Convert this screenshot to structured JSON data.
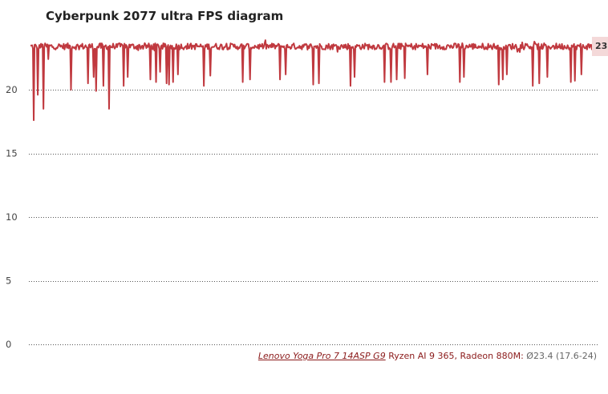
{
  "chart_data": {
    "type": "line",
    "title": "Cyberpunk 2077 ultra FPS diagram",
    "ylim": [
      0,
      24.5
    ],
    "yticks": [
      0,
      5,
      10,
      15,
      20
    ],
    "grid": true,
    "legend_position": "bottom-right",
    "series": [
      {
        "name": "Lenovo Yoga Pro 7 14ASP G9",
        "spec": "Ryzen AI 9 365, Radeon 880M:",
        "stats": "Ø23.4 (17.6-24)",
        "end_value": "23.4",
        "color": "#c0393f",
        "avg": 23.4,
        "min": 17.6,
        "max": 24,
        "sample_count": 700,
        "dips": [
          {
            "x": 4,
            "y": 17.6
          },
          {
            "x": 9,
            "y": 19.6
          },
          {
            "x": 16,
            "y": 18.5
          },
          {
            "x": 22,
            "y": 22.4
          },
          {
            "x": 50,
            "y": 20.0
          },
          {
            "x": 71,
            "y": 20.5
          },
          {
            "x": 78,
            "y": 21.0
          },
          {
            "x": 81,
            "y": 19.9
          },
          {
            "x": 90,
            "y": 20.3
          },
          {
            "x": 97,
            "y": 18.5
          },
          {
            "x": 115,
            "y": 20.3
          },
          {
            "x": 120,
            "y": 21.0
          },
          {
            "x": 148,
            "y": 20.8
          },
          {
            "x": 155,
            "y": 20.6
          },
          {
            "x": 160,
            "y": 21.4
          },
          {
            "x": 168,
            "y": 20.5
          },
          {
            "x": 171,
            "y": 20.4
          },
          {
            "x": 176,
            "y": 20.6
          },
          {
            "x": 182,
            "y": 21.2
          },
          {
            "x": 214,
            "y": 20.3
          },
          {
            "x": 222,
            "y": 21.1
          },
          {
            "x": 262,
            "y": 20.6
          },
          {
            "x": 271,
            "y": 20.8
          },
          {
            "x": 308,
            "y": 20.8
          },
          {
            "x": 315,
            "y": 21.2
          },
          {
            "x": 349,
            "y": 20.4
          },
          {
            "x": 356,
            "y": 20.5
          },
          {
            "x": 395,
            "y": 20.3
          },
          {
            "x": 400,
            "y": 21.0
          },
          {
            "x": 437,
            "y": 20.6
          },
          {
            "x": 445,
            "y": 20.6
          },
          {
            "x": 452,
            "y": 20.8
          },
          {
            "x": 462,
            "y": 20.9
          },
          {
            "x": 490,
            "y": 21.2
          },
          {
            "x": 530,
            "y": 20.6
          },
          {
            "x": 535,
            "y": 21.0
          },
          {
            "x": 578,
            "y": 20.4
          },
          {
            "x": 583,
            "y": 20.8
          },
          {
            "x": 588,
            "y": 21.2
          },
          {
            "x": 620,
            "y": 20.3
          },
          {
            "x": 628,
            "y": 20.5
          },
          {
            "x": 638,
            "y": 21.0
          },
          {
            "x": 667,
            "y": 20.6
          },
          {
            "x": 672,
            "y": 20.7
          },
          {
            "x": 680,
            "y": 21.2
          }
        ]
      }
    ]
  }
}
